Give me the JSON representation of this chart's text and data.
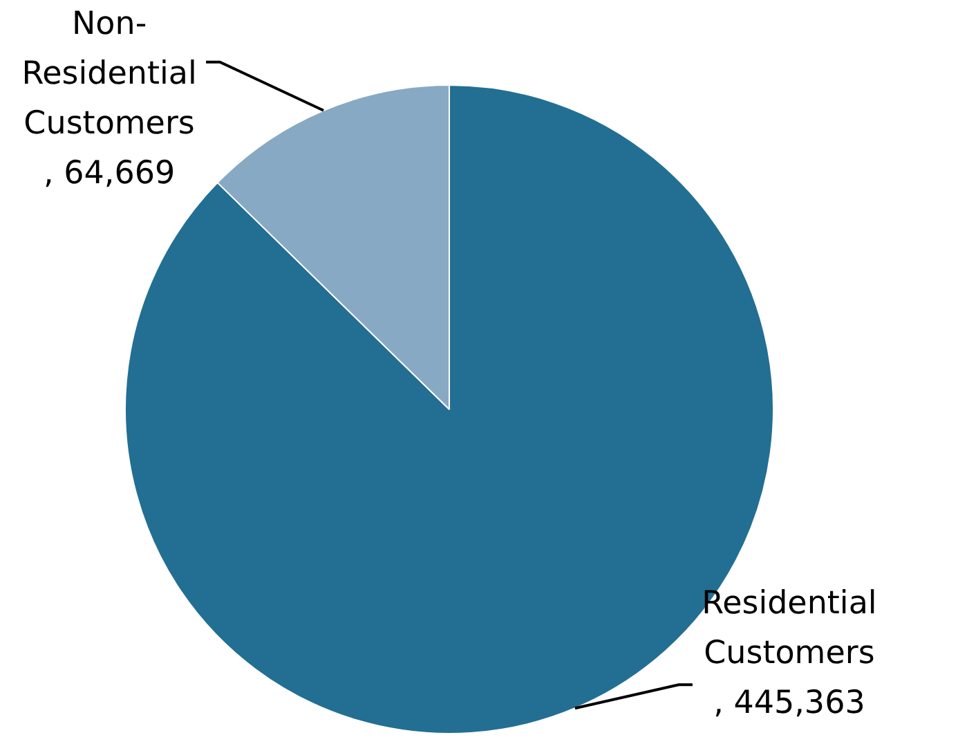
{
  "chart_data": {
    "type": "pie",
    "categories": [
      "Residential Customers",
      "Non-Residential Customers"
    ],
    "values": [
      445363,
      64669
    ],
    "value_labels": [
      ", 445,363",
      ", 64,669"
    ],
    "colors": [
      "#226f93",
      "#88a9c3"
    ],
    "legend": false
  }
}
